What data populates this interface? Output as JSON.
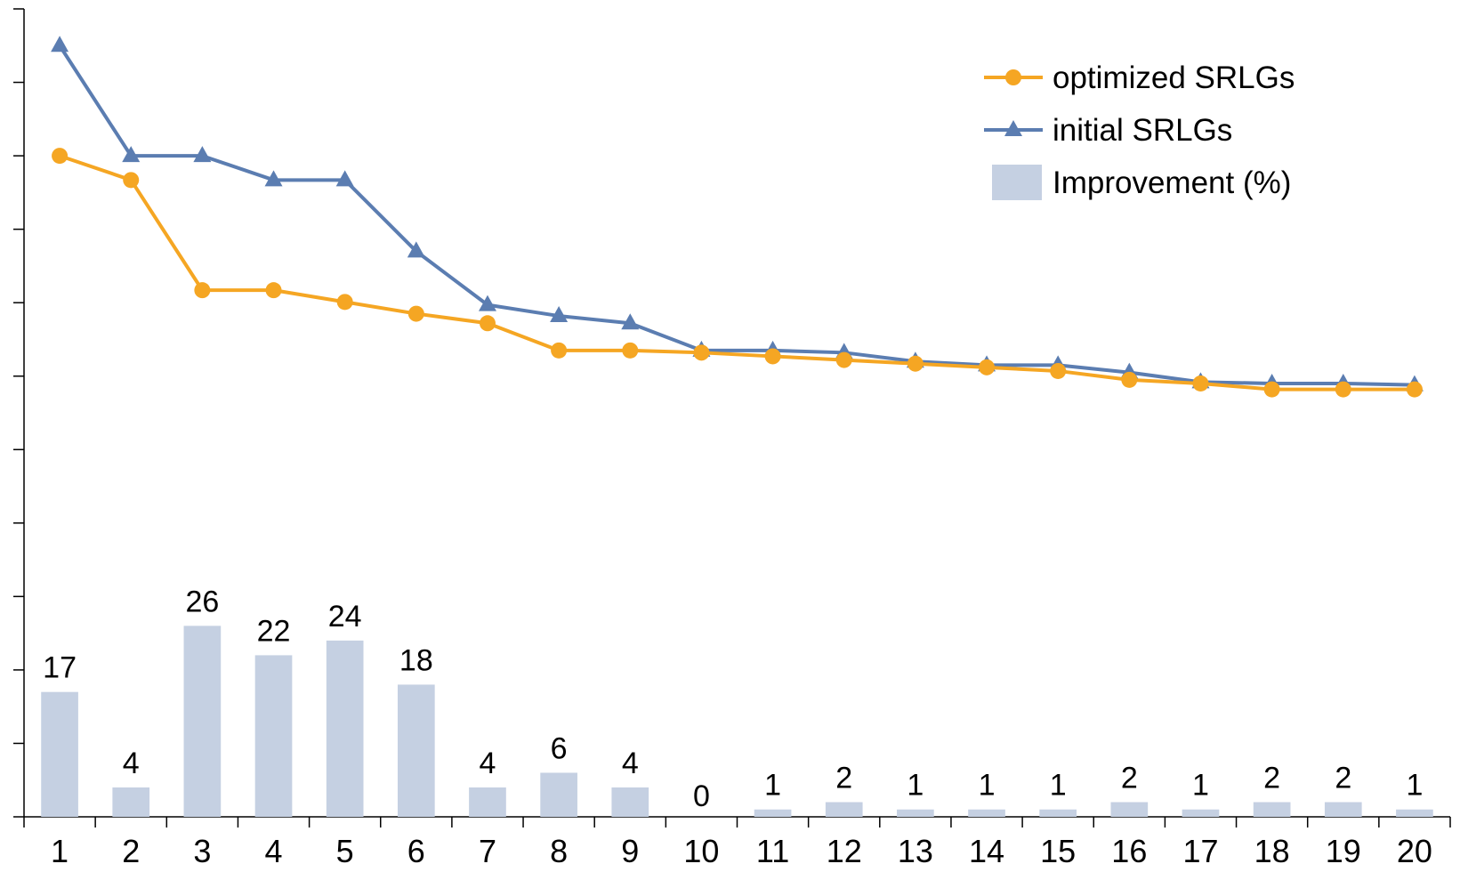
{
  "chart_data": {
    "type": "bar+line",
    "categories": [
      "1",
      "2",
      "3",
      "4",
      "5",
      "6",
      "7",
      "8",
      "9",
      "10",
      "11",
      "12",
      "13",
      "14",
      "15",
      "16",
      "17",
      "18",
      "19",
      "20"
    ],
    "ylim_lines": [
      0,
      11
    ],
    "ylim_bars": [
      0,
      110
    ],
    "grid": false,
    "legend_position": "top-right",
    "series": [
      {
        "name": "optimized SRLGs",
        "type": "line",
        "color": "#F5A623",
        "marker": "circle",
        "values": [
          9.0,
          8.67,
          7.17,
          7.17,
          7.01,
          6.85,
          6.72,
          6.35,
          6.35,
          6.32,
          6.27,
          6.22,
          6.17,
          6.12,
          6.07,
          5.95,
          5.9,
          5.82,
          5.82,
          5.82
        ]
      },
      {
        "name": "initial SRLGs",
        "type": "line",
        "color": "#5B7DB1",
        "marker": "triangle",
        "values": [
          10.5,
          9.0,
          9.0,
          8.67,
          8.67,
          7.7,
          6.97,
          6.82,
          6.72,
          6.35,
          6.35,
          6.32,
          6.2,
          6.15,
          6.15,
          6.05,
          5.92,
          5.9,
          5.9,
          5.88
        ]
      },
      {
        "name": "Improvement (%)",
        "type": "bar",
        "color": "#C5D0E2",
        "values": [
          17,
          4,
          26,
          22,
          24,
          18,
          4,
          6,
          4,
          0,
          1,
          2,
          1,
          1,
          1,
          2,
          1,
          2,
          2,
          1
        ],
        "data_labels": [
          "17",
          "4",
          "26",
          "22",
          "24",
          "18",
          "4",
          "6",
          "4",
          "0",
          "1",
          "2",
          "1",
          "1",
          "1",
          "2",
          "1",
          "2",
          "2",
          "1"
        ]
      }
    ]
  }
}
